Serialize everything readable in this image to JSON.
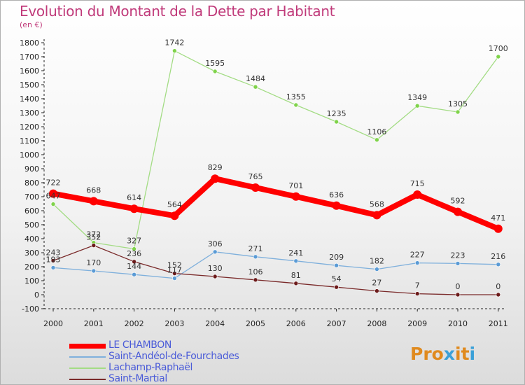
{
  "title": "Evolution du Montant de la Dette par Habitant",
  "subtitle": "(en €)",
  "logo": {
    "text": "Proxiti",
    "letter_colors": [
      "#e08a1e",
      "#e08a1e",
      "#e08a1e",
      "#3aa0d8",
      "#e08a1e",
      "#e08a1e",
      "#3aa0d8"
    ]
  },
  "chart_data": {
    "type": "line",
    "categories": [
      "2000",
      "2001",
      "2002",
      "2003",
      "2004",
      "2005",
      "2006",
      "2007",
      "2008",
      "2009",
      "2010",
      "2011"
    ],
    "ylim": [
      -100,
      1800
    ],
    "yticks": [
      -100,
      0,
      100,
      200,
      300,
      400,
      500,
      600,
      700,
      800,
      900,
      1000,
      1100,
      1200,
      1300,
      1400,
      1500,
      1600,
      1700,
      1800
    ],
    "grid": false,
    "legend_position": "bottom-left",
    "series": [
      {
        "name": "Saint-Andéol-de-Fourchades",
        "color": "#5b9bd5",
        "line_color": "#7fb0dc",
        "values": [
          193,
          170,
          144,
          117,
          306,
          271,
          241,
          209,
          182,
          227,
          223,
          216
        ],
        "labels": [
          "193",
          "170",
          "144",
          "117",
          "306",
          "271",
          "241",
          "209",
          "182",
          "227",
          "223",
          "216"
        ]
      },
      {
        "name": "Lachamp-Raphaël",
        "color": "#7fd34a",
        "line_color": "#a3dc84",
        "values": [
          647,
          372,
          327,
          1742,
          1595,
          1484,
          1355,
          1235,
          1106,
          1349,
          1305,
          1700
        ],
        "labels": [
          "647",
          "372",
          "327",
          "1742",
          "1595",
          "1484",
          "1355",
          "1235",
          "1106",
          "1349",
          "1305",
          "1700"
        ]
      },
      {
        "name": "Saint-Martial",
        "color": "#6b1a1a",
        "line_color": "#7a2a2a",
        "values": [
          243,
          352,
          236,
          152,
          130,
          106,
          81,
          54,
          27,
          7,
          0,
          0
        ],
        "labels": [
          "243",
          "352",
          "236",
          "152",
          "130",
          "106",
          "81",
          "54",
          "27",
          "7",
          "0",
          "0"
        ]
      },
      {
        "name": "LE CHAMBON",
        "color": "#ff0000",
        "line_color": "#ff0000",
        "values": [
          722,
          668,
          614,
          564,
          829,
          765,
          701,
          636,
          568,
          715,
          592,
          471
        ],
        "labels": [
          "722",
          "668",
          "614",
          "564",
          "829",
          "765",
          "701",
          "636",
          "568",
          "715",
          "592",
          "471"
        ]
      }
    ]
  },
  "legend": [
    {
      "label": "LE CHAMBON",
      "color": "#ff0000",
      "text_color": "#4a5bd8"
    },
    {
      "label": "Saint-Andéol-de-Fourchades",
      "color": "#7fb0dc",
      "text_color": "#4a5bd8"
    },
    {
      "label": "Lachamp-Raphaël",
      "color": "#a3dc84",
      "text_color": "#4a5bd8"
    },
    {
      "label": "Saint-Martial",
      "color": "#7a2a2a",
      "text_color": "#4a5bd8"
    }
  ]
}
